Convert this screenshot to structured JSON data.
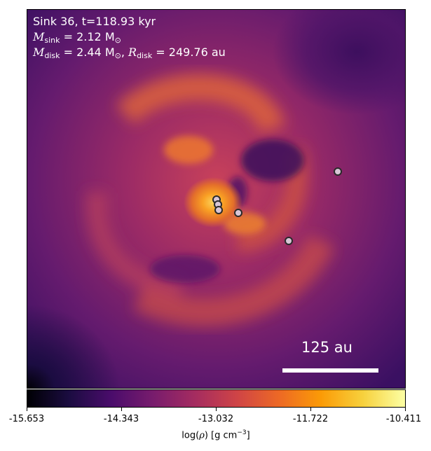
{
  "title_line1": "Sink 36, t=118.93 kyr",
  "mass_sink_label": "M",
  "mass_sink_sub": "sink",
  "mass_sink_value": " = 2.12 M",
  "mass_sink_unit_sub": "⊙",
  "mass_disk_label": "M",
  "mass_disk_sub": "disk",
  "mass_disk_value": " = 2.44 M",
  "mass_disk_unit_sub": "⊙",
  "radius_disk_sep": ", ",
  "radius_disk_label": "R",
  "radius_disk_sub": "disk",
  "radius_disk_value": " = 249.76 au",
  "scalebar_label": "125 au",
  "colorbar": {
    "ticks": [
      "-15.653",
      "-14.343",
      "-13.032",
      "-11.722",
      "-10.411"
    ],
    "title_prefix": "log(",
    "title_symbol": "ρ",
    "title_suffix": ") [g cm",
    "title_exp": "−3",
    "title_end": "]",
    "colormap": "inferno-like",
    "colors": [
      "#000004",
      "#1b0c41",
      "#4a0c6b",
      "#781c6d",
      "#a52c60",
      "#cf4446",
      "#ed6925",
      "#fb9b06",
      "#f7d13d",
      "#fcffa4"
    ]
  },
  "colors": {
    "background_low": "#4a1a6e",
    "core_high": "#fcae2c",
    "sink_marker_fill": "#d8c6d6",
    "sink_marker_edge": "#2a2a2a",
    "text": "#ffffff"
  },
  "sinks_count_visible": 6
}
